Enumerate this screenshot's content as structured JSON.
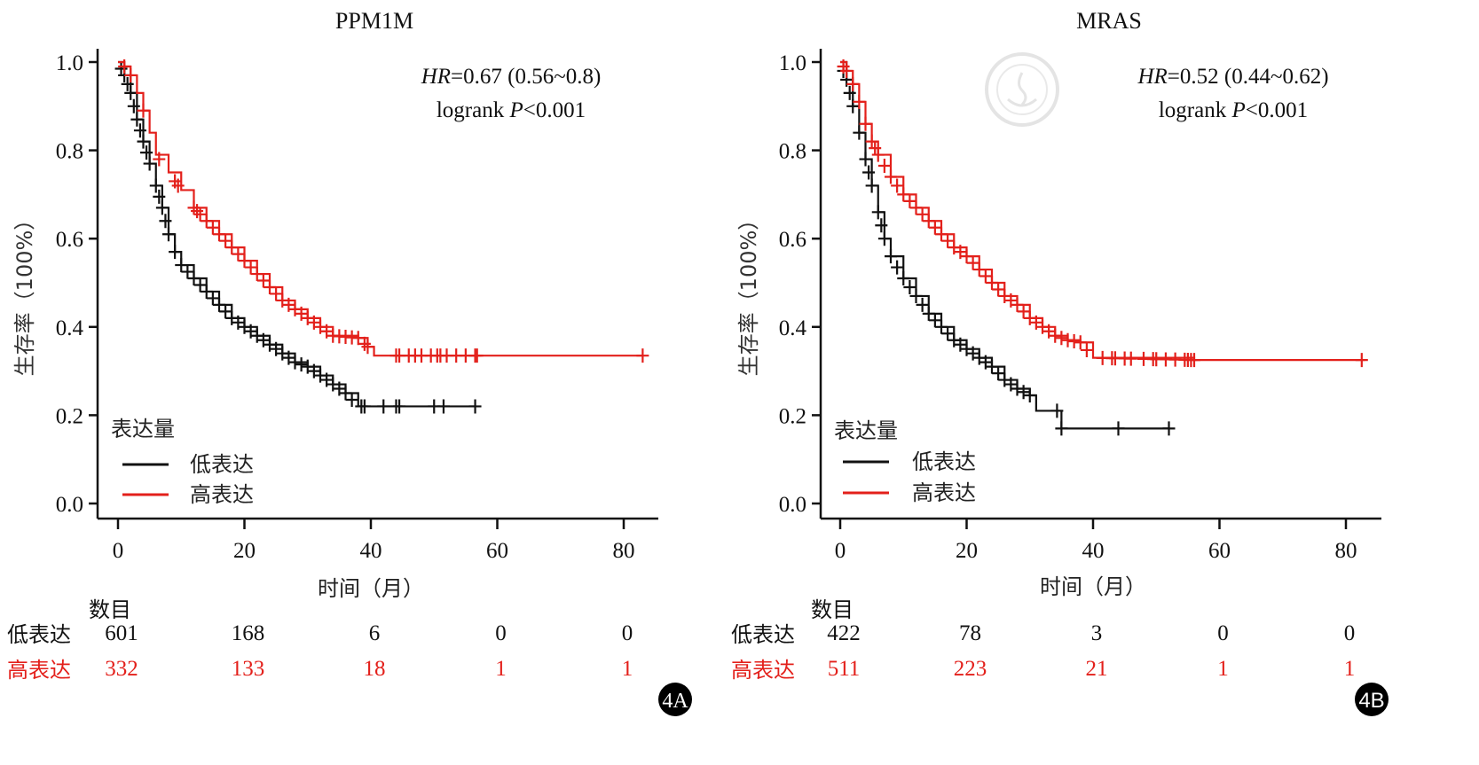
{
  "colors": {
    "low": "#111111",
    "high": "#e3201b",
    "axis": "#111111",
    "badge_bg": "#000000",
    "badge_fg": "#ffffff",
    "watermark": "#cfcfcf"
  },
  "legend": {
    "title": "表达量",
    "low_label": "低表达",
    "high_label": "高表达"
  },
  "risk_table": {
    "header": "数目",
    "row_low_label": "低表达",
    "row_high_label": "高表达"
  },
  "chart_data": [
    {
      "type": "line",
      "subtype": "kaplan-meier",
      "title": "PPM1M",
      "xlabel": "时间（月）",
      "ylabel": "生存率（100%）",
      "xlim": [
        0,
        85
      ],
      "ylim": [
        0,
        1.0
      ],
      "xticks": [
        0,
        20,
        40,
        60,
        80
      ],
      "xtick_labels": [
        "0",
        "20",
        "40",
        "60",
        "80"
      ],
      "yticks": [
        0.0,
        0.2,
        0.4,
        0.6,
        0.8,
        1.0
      ],
      "ytick_labels": [
        "0.0",
        "0.2",
        "0.4",
        "0.6",
        "0.8",
        "1.0"
      ],
      "annotation": {
        "hr_label": "HR",
        "hr_text": "=0.67 (0.56~0.8)",
        "logrank_text": "logrank ",
        "p_label": "P",
        "p_text": "<0.001"
      },
      "legend_position": "bottom-left",
      "badge": "4A",
      "series": [
        {
          "name": "低表达",
          "color_key": "low",
          "x": [
            0,
            1,
            2,
            3,
            4,
            5,
            6,
            7,
            8,
            9,
            10,
            12,
            14,
            16,
            18,
            20,
            22,
            24,
            26,
            28,
            30,
            32,
            34,
            36,
            38,
            56.5
          ],
          "y": [
            1.0,
            0.97,
            0.93,
            0.87,
            0.82,
            0.77,
            0.72,
            0.67,
            0.61,
            0.57,
            0.54,
            0.51,
            0.48,
            0.45,
            0.42,
            0.4,
            0.38,
            0.36,
            0.34,
            0.32,
            0.31,
            0.29,
            0.27,
            0.25,
            0.22,
            0.22
          ],
          "censor_x": [
            0.5,
            1,
            1.5,
            2,
            2.5,
            3,
            3.5,
            4,
            4.5,
            5,
            6,
            6.5,
            7,
            7.5,
            8,
            9,
            10,
            11,
            12,
            13,
            14,
            15,
            16,
            17,
            18,
            19,
            20,
            21,
            22,
            23,
            24,
            25,
            26,
            27,
            28,
            29,
            30,
            31,
            32,
            33,
            34,
            35,
            36,
            37,
            38.5,
            39,
            42,
            44,
            44.5,
            50,
            51.5,
            56.5
          ]
        },
        {
          "name": "高表达",
          "color_key": "high",
          "x": [
            0,
            1,
            2,
            3,
            4,
            5,
            6,
            8,
            10,
            12,
            14,
            16,
            18,
            20,
            22,
            24,
            26,
            28,
            30,
            32,
            34,
            38,
            39.5,
            40.5,
            83
          ],
          "y": [
            1.0,
            0.99,
            0.97,
            0.93,
            0.89,
            0.84,
            0.79,
            0.75,
            0.71,
            0.67,
            0.64,
            0.61,
            0.58,
            0.55,
            0.52,
            0.49,
            0.46,
            0.44,
            0.42,
            0.4,
            0.38,
            0.375,
            0.355,
            0.335,
            0.335
          ],
          "censor_x": [
            1,
            2,
            4,
            6.5,
            9,
            9.5,
            12,
            12.5,
            13,
            14,
            15,
            16,
            17,
            18,
            19,
            20,
            21,
            22,
            23,
            24,
            25,
            26,
            27,
            28,
            29,
            30,
            31,
            32,
            33,
            34,
            35,
            36,
            37,
            38,
            39,
            39.5,
            44,
            44.5,
            46,
            47,
            48,
            49.5,
            50.5,
            51,
            52,
            53.5,
            55,
            56.5,
            56.8,
            83
          ]
        }
      ],
      "risk_table": {
        "times": [
          0,
          20,
          40,
          60,
          80
        ],
        "low": [
          "601",
          "168",
          "6",
          "0",
          "0"
        ],
        "high": [
          "332",
          "133",
          "18",
          "1",
          "1"
        ]
      }
    },
    {
      "type": "line",
      "subtype": "kaplan-meier",
      "title": "MRAS",
      "xlabel": "时间（月）",
      "ylabel": "生存率（100%）",
      "xlim": [
        0,
        85
      ],
      "ylim": [
        0,
        1.0
      ],
      "xticks": [
        0,
        20,
        40,
        60,
        80
      ],
      "xtick_labels": [
        "0",
        "20",
        "40",
        "60",
        "80"
      ],
      "yticks": [
        0.0,
        0.2,
        0.4,
        0.6,
        0.8,
        1.0
      ],
      "ytick_labels": [
        "0.0",
        "0.2",
        "0.4",
        "0.6",
        "0.8",
        "1.0"
      ],
      "annotation": {
        "hr_label": "HR",
        "hr_text": "=0.52 (0.44~0.62)",
        "logrank_text": "logrank ",
        "p_label": "P",
        "p_text": "<0.001"
      },
      "legend_position": "bottom-left",
      "badge": "4B",
      "watermark": true,
      "series": [
        {
          "name": "低表达",
          "color_key": "low",
          "x": [
            0,
            1,
            2,
            3,
            4,
            5,
            6,
            7,
            8,
            10,
            12,
            14,
            16,
            18,
            20,
            22,
            24,
            26,
            28,
            30,
            31,
            34.5,
            35,
            52
          ],
          "y": [
            1.0,
            0.96,
            0.9,
            0.84,
            0.78,
            0.72,
            0.66,
            0.6,
            0.56,
            0.51,
            0.47,
            0.43,
            0.4,
            0.37,
            0.35,
            0.33,
            0.31,
            0.28,
            0.26,
            0.245,
            0.21,
            0.21,
            0.17,
            0.17
          ],
          "censor_x": [
            0.5,
            1,
            1.5,
            2,
            3,
            4,
            4.5,
            5,
            6,
            6.5,
            7,
            8,
            9,
            10,
            11,
            12,
            13,
            14,
            15,
            16,
            17,
            18,
            19,
            20,
            21,
            22,
            23,
            24,
            25,
            26,
            27,
            28,
            29,
            30,
            34.3,
            35,
            44,
            52
          ]
        },
        {
          "name": "高表达",
          "color_key": "high",
          "x": [
            0,
            1,
            2,
            3,
            4,
            5,
            6,
            8,
            10,
            12,
            14,
            16,
            18,
            20,
            22,
            24,
            26,
            28,
            30,
            32,
            34,
            36,
            38,
            40,
            56,
            83
          ],
          "y": [
            1.0,
            0.98,
            0.95,
            0.91,
            0.86,
            0.82,
            0.79,
            0.74,
            0.7,
            0.67,
            0.64,
            0.61,
            0.58,
            0.56,
            0.53,
            0.5,
            0.47,
            0.45,
            0.42,
            0.4,
            0.38,
            0.37,
            0.365,
            0.33,
            0.325,
            0.325
          ],
          "censor_x": [
            0.5,
            1,
            2,
            3,
            4,
            5,
            5.5,
            6,
            7,
            8,
            9,
            10,
            11,
            12,
            13,
            14,
            15,
            16,
            17,
            18,
            19,
            20,
            21,
            22,
            23,
            24,
            25,
            26,
            27,
            28,
            29,
            30,
            31,
            32,
            33,
            34,
            35,
            36,
            37,
            38,
            39,
            41.5,
            43,
            43.5,
            45,
            46,
            48,
            49.5,
            50,
            51.5,
            53,
            54.5,
            55,
            55.5,
            56,
            82.5
          ]
        }
      ],
      "risk_table": {
        "times": [
          0,
          20,
          40,
          60,
          80
        ],
        "low": [
          "422",
          "78",
          "3",
          "0",
          "0"
        ],
        "high": [
          "511",
          "223",
          "21",
          "1",
          "1"
        ]
      }
    }
  ]
}
